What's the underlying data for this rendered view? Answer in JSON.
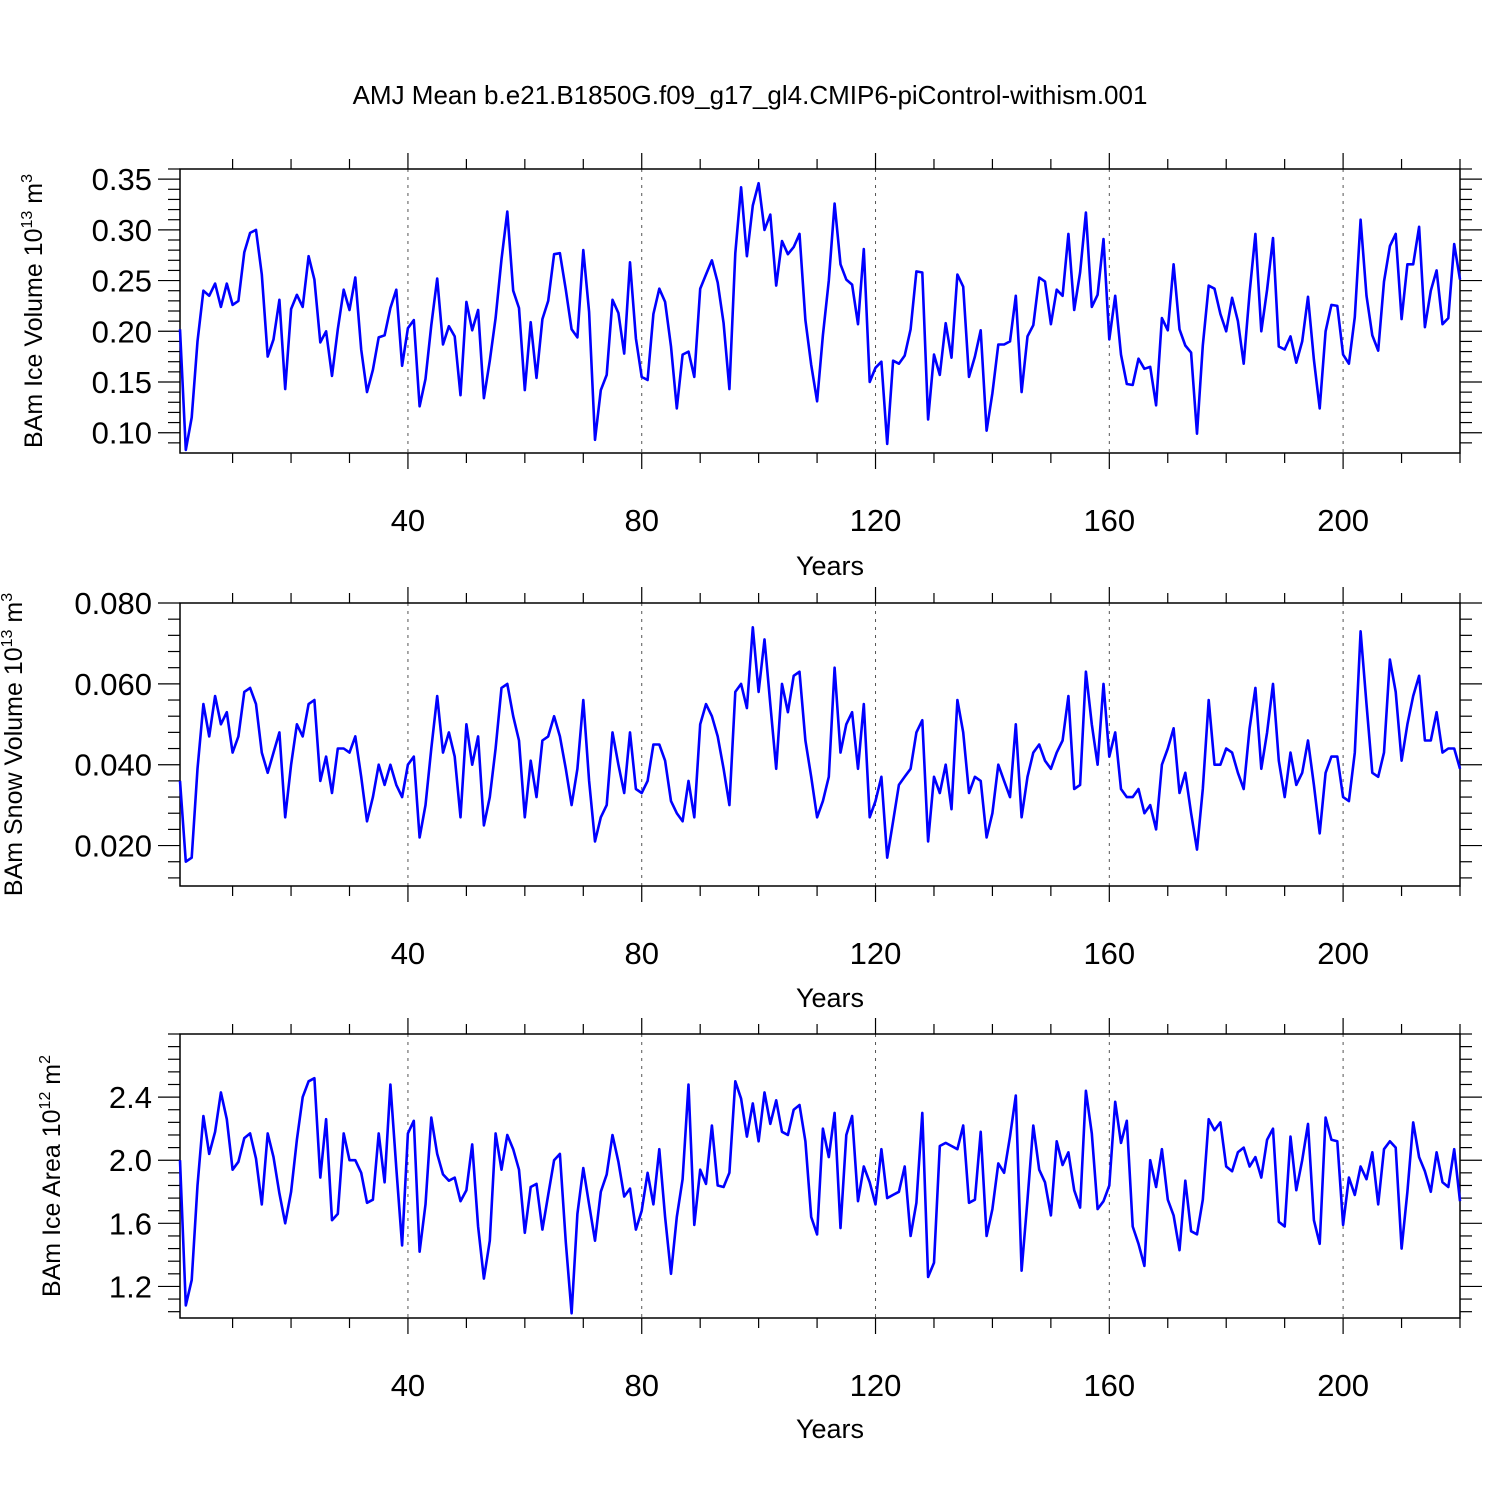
{
  "title": "AMJ Mean b.e21.B1850G.f09_g17_gl4.CMIP6-piControl-withism.001",
  "line_color": "#0000ff",
  "chart_data": [
    {
      "type": "line",
      "name": "ice-volume",
      "ylabel": "BAm Ice Volume",
      "yunit_prefix": "10",
      "yunit_exp": "13",
      "yunit_suffix": "m",
      "yunit_suffix_exp": "3",
      "xlabel": "Years",
      "xlim": [
        1,
        220
      ],
      "ylim": [
        0.08,
        0.36
      ],
      "xticks": [
        40,
        80,
        120,
        160,
        200
      ],
      "yticks": [
        0.1,
        0.15,
        0.2,
        0.25,
        0.3,
        0.35
      ],
      "ytick_labels": [
        "0.10",
        "0.15",
        "0.20",
        "0.25",
        "0.30",
        "0.35"
      ],
      "values": [
        0.202,
        0.083,
        0.115,
        0.19,
        0.24,
        0.235,
        0.247,
        0.224,
        0.247,
        0.226,
        0.23,
        0.278,
        0.297,
        0.3,
        0.256,
        0.175,
        0.192,
        0.231,
        0.143,
        0.222,
        0.236,
        0.224,
        0.274,
        0.251,
        0.189,
        0.2,
        0.156,
        0.202,
        0.241,
        0.221,
        0.253,
        0.182,
        0.14,
        0.162,
        0.194,
        0.196,
        0.223,
        0.241,
        0.166,
        0.203,
        0.211,
        0.126,
        0.153,
        0.206,
        0.252,
        0.187,
        0.205,
        0.195,
        0.137,
        0.229,
        0.201,
        0.221,
        0.134,
        0.171,
        0.213,
        0.271,
        0.318,
        0.24,
        0.223,
        0.142,
        0.209,
        0.154,
        0.212,
        0.23,
        0.276,
        0.277,
        0.241,
        0.202,
        0.194,
        0.28,
        0.219,
        0.093,
        0.142,
        0.157,
        0.231,
        0.218,
        0.178,
        0.268,
        0.193,
        0.155,
        0.152,
        0.217,
        0.242,
        0.229,
        0.185,
        0.124,
        0.177,
        0.18,
        0.155,
        0.242,
        0.256,
        0.27,
        0.248,
        0.208,
        0.143,
        0.277,
        0.342,
        0.274,
        0.324,
        0.346,
        0.3,
        0.315,
        0.245,
        0.289,
        0.276,
        0.283,
        0.296,
        0.211,
        0.167,
        0.131,
        0.196,
        0.25,
        0.326,
        0.266,
        0.251,
        0.246,
        0.207,
        0.281,
        0.15,
        0.164,
        0.17,
        0.089,
        0.171,
        0.168,
        0.176,
        0.202,
        0.259,
        0.258,
        0.113,
        0.177,
        0.157,
        0.208,
        0.174,
        0.256,
        0.244,
        0.155,
        0.175,
        0.201,
        0.102,
        0.139,
        0.187,
        0.187,
        0.19,
        0.235,
        0.14,
        0.195,
        0.206,
        0.253,
        0.249,
        0.207,
        0.241,
        0.235,
        0.296,
        0.221,
        0.258,
        0.317,
        0.224,
        0.236,
        0.291,
        0.192,
        0.235,
        0.177,
        0.148,
        0.147,
        0.173,
        0.163,
        0.165,
        0.127,
        0.213,
        0.201,
        0.266,
        0.202,
        0.186,
        0.179,
        0.099,
        0.186,
        0.245,
        0.242,
        0.217,
        0.2,
        0.233,
        0.21,
        0.168,
        0.238,
        0.296,
        0.2,
        0.241,
        0.292,
        0.185,
        0.182,
        0.195,
        0.169,
        0.19,
        0.234,
        0.172,
        0.124,
        0.2,
        0.226,
        0.225,
        0.177,
        0.168,
        0.214,
        0.31,
        0.235,
        0.196,
        0.181,
        0.249,
        0.284,
        0.296,
        0.212,
        0.266,
        0.266,
        0.303,
        0.204,
        0.24,
        0.26,
        0.207,
        0.213,
        0.286,
        0.251
      ]
    },
    {
      "type": "line",
      "name": "snow-volume",
      "ylabel": "BAm Snow Volume",
      "yunit_prefix": "10",
      "yunit_exp": "13",
      "yunit_suffix": "m",
      "yunit_suffix_exp": "3",
      "xlabel": "Years",
      "xlim": [
        1,
        220
      ],
      "ylim": [
        0.01,
        0.08
      ],
      "xticks": [
        40,
        80,
        120,
        160,
        200
      ],
      "yticks": [
        0.02,
        0.04,
        0.06,
        0.08
      ],
      "ytick_labels": [
        "0.020",
        "0.040",
        "0.060",
        "0.080"
      ],
      "values": [
        0.036,
        0.016,
        0.017,
        0.039,
        0.055,
        0.047,
        0.057,
        0.05,
        0.053,
        0.043,
        0.047,
        0.058,
        0.059,
        0.055,
        0.043,
        0.038,
        0.043,
        0.048,
        0.027,
        0.04,
        0.05,
        0.047,
        0.055,
        0.056,
        0.036,
        0.042,
        0.033,
        0.044,
        0.044,
        0.043,
        0.047,
        0.037,
        0.026,
        0.032,
        0.04,
        0.035,
        0.04,
        0.035,
        0.032,
        0.04,
        0.042,
        0.022,
        0.03,
        0.044,
        0.057,
        0.043,
        0.048,
        0.042,
        0.027,
        0.05,
        0.04,
        0.047,
        0.025,
        0.032,
        0.044,
        0.059,
        0.06,
        0.052,
        0.046,
        0.027,
        0.041,
        0.032,
        0.046,
        0.047,
        0.052,
        0.047,
        0.039,
        0.03,
        0.039,
        0.056,
        0.036,
        0.021,
        0.027,
        0.03,
        0.048,
        0.04,
        0.033,
        0.048,
        0.034,
        0.033,
        0.036,
        0.045,
        0.045,
        0.041,
        0.031,
        0.028,
        0.026,
        0.036,
        0.027,
        0.05,
        0.055,
        0.052,
        0.047,
        0.039,
        0.03,
        0.058,
        0.06,
        0.054,
        0.074,
        0.058,
        0.071,
        0.055,
        0.039,
        0.06,
        0.053,
        0.062,
        0.063,
        0.046,
        0.037,
        0.027,
        0.031,
        0.037,
        0.064,
        0.043,
        0.05,
        0.053,
        0.039,
        0.055,
        0.027,
        0.031,
        0.037,
        0.017,
        0.026,
        0.035,
        0.037,
        0.039,
        0.048,
        0.051,
        0.021,
        0.037,
        0.033,
        0.04,
        0.029,
        0.056,
        0.048,
        0.033,
        0.037,
        0.036,
        0.022,
        0.028,
        0.04,
        0.036,
        0.032,
        0.05,
        0.027,
        0.037,
        0.043,
        0.045,
        0.041,
        0.039,
        0.043,
        0.046,
        0.057,
        0.034,
        0.035,
        0.063,
        0.05,
        0.04,
        0.06,
        0.042,
        0.048,
        0.034,
        0.032,
        0.032,
        0.034,
        0.028,
        0.03,
        0.024,
        0.04,
        0.044,
        0.049,
        0.033,
        0.038,
        0.028,
        0.019,
        0.034,
        0.056,
        0.04,
        0.04,
        0.044,
        0.043,
        0.038,
        0.034,
        0.049,
        0.059,
        0.039,
        0.048,
        0.06,
        0.041,
        0.032,
        0.043,
        0.035,
        0.038,
        0.046,
        0.035,
        0.023,
        0.038,
        0.042,
        0.042,
        0.032,
        0.031,
        0.043,
        0.073,
        0.055,
        0.038,
        0.037,
        0.043,
        0.066,
        0.058,
        0.041,
        0.05,
        0.057,
        0.062,
        0.046,
        0.046,
        0.053,
        0.043,
        0.044,
        0.044,
        0.039
      ]
    },
    {
      "type": "line",
      "name": "ice-area",
      "ylabel": "BAm Ice Area",
      "yunit_prefix": "10",
      "yunit_exp": "12",
      "yunit_suffix": "m",
      "yunit_suffix_exp": "2",
      "xlabel": "Years",
      "xlim": [
        1,
        220
      ],
      "ylim": [
        1.0,
        2.8
      ],
      "xticks": [
        40,
        80,
        120,
        160,
        200
      ],
      "yticks": [
        1.2,
        1.6,
        2.0,
        2.4
      ],
      "ytick_labels": [
        "1.2",
        "1.6",
        "2.0",
        "2.4"
      ],
      "values": [
        2.0,
        1.08,
        1.24,
        1.84,
        2.28,
        2.04,
        2.18,
        2.43,
        2.26,
        1.94,
        1.99,
        2.14,
        2.17,
        2.01,
        1.72,
        2.17,
        2.02,
        1.79,
        1.6,
        1.8,
        2.13,
        2.4,
        2.5,
        2.52,
        1.89,
        2.26,
        1.62,
        1.66,
        2.17,
        2.0,
        2.0,
        1.92,
        1.73,
        1.75,
        2.17,
        1.86,
        2.48,
        1.95,
        1.46,
        2.17,
        2.25,
        1.42,
        1.72,
        2.27,
        2.04,
        1.91,
        1.87,
        1.89,
        1.74,
        1.81,
        2.1,
        1.58,
        1.25,
        1.49,
        2.17,
        1.94,
        2.16,
        2.07,
        1.94,
        1.54,
        1.83,
        1.85,
        1.56,
        1.78,
        2.0,
        2.04,
        1.48,
        1.03,
        1.66,
        1.95,
        1.72,
        1.49,
        1.8,
        1.91,
        2.16,
        1.99,
        1.77,
        1.82,
        1.56,
        1.68,
        1.92,
        1.72,
        2.07,
        1.64,
        1.28,
        1.64,
        1.88,
        2.48,
        1.59,
        1.94,
        1.85,
        2.22,
        1.84,
        1.83,
        1.92,
        2.5,
        2.39,
        2.15,
        2.36,
        2.12,
        2.43,
        2.23,
        2.38,
        2.18,
        2.16,
        2.32,
        2.35,
        2.12,
        1.64,
        1.53,
        2.2,
        2.02,
        2.3,
        1.57,
        2.16,
        2.28,
        1.74,
        1.96,
        1.86,
        1.72,
        2.07,
        1.76,
        1.78,
        1.8,
        1.96,
        1.52,
        1.73,
        2.3,
        1.26,
        1.35,
        2.09,
        2.11,
        2.09,
        2.07,
        2.22,
        1.73,
        1.75,
        2.18,
        1.52,
        1.69,
        1.98,
        1.92,
        2.15,
        2.41,
        1.3,
        1.75,
        2.22,
        1.94,
        1.86,
        1.65,
        2.12,
        1.97,
        2.05,
        1.81,
        1.7,
        2.44,
        2.17,
        1.69,
        1.74,
        1.84,
        2.37,
        2.11,
        2.25,
        1.58,
        1.47,
        1.33,
        2.0,
        1.83,
        2.07,
        1.75,
        1.65,
        1.43,
        1.87,
        1.55,
        1.53,
        1.75,
        2.26,
        2.19,
        2.24,
        1.96,
        1.93,
        2.05,
        2.08,
        1.96,
        2.02,
        1.89,
        2.13,
        2.2,
        1.61,
        1.58,
        2.15,
        1.81,
        2.0,
        2.23,
        1.62,
        1.47,
        2.27,
        2.13,
        2.12,
        1.59,
        1.89,
        1.78,
        1.96,
        1.88,
        2.05,
        1.72,
        2.07,
        2.12,
        2.08,
        1.44,
        1.8,
        2.24,
        2.02,
        1.93,
        1.8,
        2.05,
        1.86,
        1.83,
        2.07,
        1.74
      ]
    }
  ]
}
